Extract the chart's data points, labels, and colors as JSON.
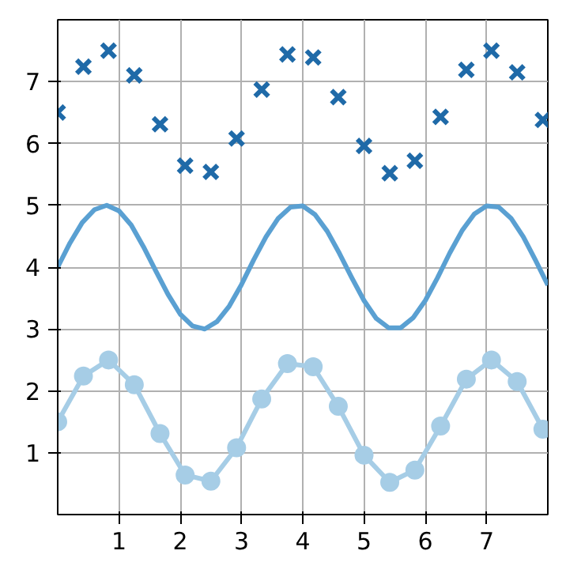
{
  "chart_data": {
    "type": "line",
    "xlim": [
      0,
      8
    ],
    "ylim": [
      0,
      8
    ],
    "xticks": [
      1,
      2,
      3,
      4,
      5,
      6,
      7
    ],
    "yticks": [
      1,
      2,
      3,
      4,
      5,
      6,
      7
    ],
    "grid": true,
    "series": [
      {
        "type": "scatter",
        "marker": "cross",
        "color": "#1f6aa8",
        "x": [
          0,
          0.42,
          0.83,
          1.25,
          1.67,
          2.08,
          2.5,
          2.92,
          3.33,
          3.75,
          4.17,
          4.58,
          5.0,
          5.42,
          5.83,
          6.25,
          6.67,
          7.08,
          7.5,
          7.92
        ],
        "values": [
          6.5,
          7.24,
          7.5,
          7.1,
          6.31,
          5.64,
          5.54,
          6.08,
          6.87,
          7.44,
          7.39,
          6.75,
          5.96,
          5.52,
          5.72,
          6.43,
          7.19,
          7.5,
          7.15,
          6.38
        ]
      },
      {
        "marker": "none",
        "line_style": "solid",
        "color": "#5aa0d2",
        "x": [
          0,
          0.2,
          0.4,
          0.6,
          0.8,
          1.0,
          1.2,
          1.4,
          1.6,
          1.8,
          2.0,
          2.2,
          2.4,
          2.6,
          2.8,
          3.0,
          3.2,
          3.4,
          3.6,
          3.8,
          4.0,
          4.2,
          4.4,
          4.6,
          4.8,
          5.0,
          5.2,
          5.4,
          5.6,
          5.8,
          6.0,
          6.2,
          6.4,
          6.6,
          6.8,
          7.0,
          7.2,
          7.4,
          7.6,
          7.8,
          8.0
        ],
        "values": [
          4,
          4.39,
          4.72,
          4.93,
          5.0,
          4.91,
          4.68,
          4.33,
          3.94,
          3.56,
          3.24,
          3.05,
          3.0,
          3.12,
          3.37,
          3.72,
          4.12,
          4.49,
          4.79,
          4.97,
          4.99,
          4.85,
          4.58,
          4.22,
          3.83,
          3.46,
          3.17,
          3.02,
          3.02,
          3.18,
          3.46,
          3.83,
          4.23,
          4.59,
          4.86,
          4.99,
          4.97,
          4.79,
          4.49,
          4.11,
          3.71
        ]
      },
      {
        "marker": "circle",
        "line_style": "solid",
        "color": "#a6cde6",
        "x": [
          0,
          0.42,
          0.83,
          1.25,
          1.67,
          2.08,
          2.5,
          2.92,
          3.33,
          3.75,
          4.17,
          4.58,
          5.0,
          5.42,
          5.83,
          6.25,
          6.67,
          7.08,
          7.5,
          7.92
        ],
        "values": [
          1.5,
          2.24,
          2.5,
          2.1,
          1.31,
          0.64,
          0.54,
          1.08,
          1.87,
          2.44,
          2.39,
          1.75,
          0.96,
          0.52,
          0.72,
          1.43,
          2.19,
          2.5,
          2.15,
          1.38
        ]
      }
    ]
  }
}
